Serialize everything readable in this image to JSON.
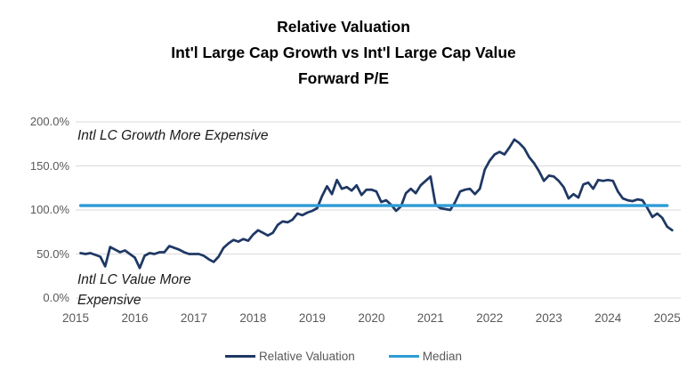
{
  "title": {
    "line1": "Relative Valuation",
    "line2": "Int'l Large Cap Growth vs Int'l Large Cap Value",
    "line3": "Forward P/E"
  },
  "annotations": {
    "growth_side": "Intl LC Growth More Expensive",
    "value_side_line1": "Intl LC Value More",
    "value_side_line2": "Expensive"
  },
  "legend": {
    "items": [
      {
        "label": "Relative Valuation",
        "color": "#1F3864"
      },
      {
        "label": "Median",
        "color": "#2E9BD5"
      }
    ]
  },
  "colors": {
    "series_line": "#1F3864",
    "median_line": "#2E9BD5",
    "gridline": "#D9D9D9",
    "axis_text": "#595959",
    "title_text": "#000000"
  },
  "chart_data": {
    "type": "line",
    "title": "Relative Valuation Int'l Large Cap Growth vs Int'l Large Cap Value Forward P/E",
    "xlabel": "",
    "ylabel": "",
    "grid": "horizontal",
    "legend_position": "bottom",
    "xlim": [
      2015,
      2025.23
    ],
    "ylim": [
      0,
      200
    ],
    "x_tick_years": [
      2015,
      2016,
      2017,
      2018,
      2019,
      2020,
      2021,
      2022,
      2023,
      2024,
      2025
    ],
    "x_tick_labels": [
      "2015",
      "2016",
      "2017",
      "2018",
      "2019",
      "2020",
      "2021",
      "2022",
      "2023",
      "2024",
      "2025"
    ],
    "y_ticks": [
      {
        "value": 0,
        "label": "0.0%"
      },
      {
        "value": 50,
        "label": "50.0%"
      },
      {
        "value": 100,
        "label": "100.0%"
      },
      {
        "value": 150,
        "label": "150.0%"
      },
      {
        "value": 200,
        "label": "200.0%"
      }
    ],
    "x_unit": "month",
    "x_first_month": "2015-02",
    "x_last_month": "2025-02",
    "series": [
      {
        "name": "Relative Valuation",
        "color": "#1F3864",
        "values_pct": [
          51,
          50,
          51,
          49,
          47,
          36,
          58,
          55,
          52,
          54,
          50,
          46,
          34,
          48,
          51,
          50,
          52,
          52,
          59,
          57,
          55,
          52,
          50,
          50,
          50,
          48,
          44,
          41,
          47,
          57,
          62,
          66,
          64,
          67,
          65,
          72,
          77,
          74,
          71,
          74,
          83,
          87,
          86,
          89,
          96,
          94,
          97,
          99,
          102,
          116,
          127,
          118,
          134,
          124,
          126,
          122,
          128,
          117,
          123,
          123,
          121,
          109,
          111,
          106,
          99,
          104,
          119,
          124,
          119,
          128,
          133,
          138,
          106,
          102,
          101,
          100,
          109,
          121,
          123,
          124,
          118,
          124,
          146,
          156,
          163,
          166,
          163,
          171,
          180,
          176,
          170,
          160,
          153,
          144,
          133,
          139,
          138,
          133,
          126,
          113,
          118,
          114,
          129,
          131,
          124,
          134,
          133,
          134,
          133,
          121,
          113,
          111,
          110,
          112,
          111,
          102,
          92,
          96,
          91,
          81,
          77
        ]
      },
      {
        "name": "Median",
        "color": "#2E9BD5",
        "constant_pct": 105
      }
    ]
  }
}
